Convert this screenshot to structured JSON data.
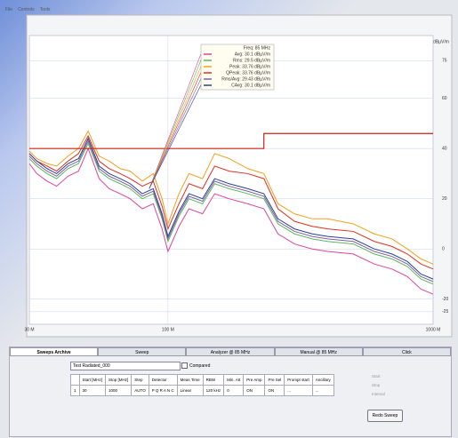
{
  "menu": [
    "File",
    "Controls",
    "Tools"
  ],
  "chart_data": {
    "type": "line",
    "y_axis_label": "dBµV/m",
    "cursor_label": "Freq: 85 MHz",
    "log_x": true,
    "grid": true,
    "xlim": [
      30,
      1000
    ],
    "xticks": [
      {
        "value": 30,
        "label": "30 M"
      },
      {
        "value": 100,
        "label": "100 M"
      },
      {
        "value": 1000,
        "label": "1000 M"
      }
    ],
    "ylim": [
      -30,
      85
    ],
    "yticks": [
      75,
      60,
      40,
      20,
      0,
      -20,
      -25
    ],
    "x": [
      30,
      32,
      35,
      38,
      42,
      46,
      50,
      55,
      60,
      66,
      72,
      80,
      88,
      95,
      100,
      110,
      120,
      135,
      150,
      170,
      200,
      230,
      260,
      300,
      350,
      400,
      500,
      600,
      700,
      800,
      900,
      1000
    ],
    "series": [
      {
        "name": "Avg: 30.1 dBµV/m",
        "color": "#e0449a",
        "values": [
          34,
          30,
          27,
          25,
          29,
          31,
          40,
          28,
          24,
          22,
          20,
          16,
          18,
          8,
          -1,
          9,
          16,
          14,
          22,
          20,
          18,
          16,
          6,
          2,
          0,
          -1,
          -2,
          -6,
          -8,
          -11,
          -16,
          -18
        ]
      },
      {
        "name": "Rms: 29.5 dBµV/m",
        "color": "#5cb85c",
        "values": [
          36,
          33,
          30,
          28,
          32,
          34,
          42,
          31,
          28,
          26,
          24,
          20,
          22,
          12,
          3,
          13,
          20,
          18,
          26,
          24,
          22,
          20,
          10,
          6,
          4,
          3,
          2,
          -2,
          -4,
          -7,
          -12,
          -14
        ]
      },
      {
        "name": "Peak: 33.76 dBµV/m",
        "color": "#f0a020",
        "values": [
          39,
          36,
          34,
          33,
          37,
          40,
          47,
          37,
          35,
          32,
          31,
          27,
          30,
          20,
          10,
          22,
          30,
          28,
          38,
          36,
          32,
          30,
          18,
          14,
          12,
          12,
          10,
          6,
          4,
          0,
          -4,
          -6
        ]
      },
      {
        "name": "QPeak: 33.76 dBµV/m",
        "color": "#e03020",
        "values": [
          38,
          35,
          33,
          31,
          35,
          38,
          45,
          35,
          32,
          30,
          28,
          25,
          27,
          17,
          8,
          18,
          26,
          24,
          33,
          31,
          30,
          28,
          16,
          11,
          9,
          8,
          7,
          3,
          1,
          -2,
          -6,
          -8
        ]
      },
      {
        "name": "Rms/Avg: 29.43 dBµV/m",
        "color": "#8060a0",
        "values": [
          37,
          34,
          31,
          29,
          33,
          35,
          43,
          32,
          29,
          27,
          25,
          21,
          23,
          13,
          4,
          14,
          21,
          19,
          27,
          25,
          23,
          21,
          11,
          7,
          5,
          4,
          3,
          -1,
          -3,
          -6,
          -11,
          -13
        ]
      },
      {
        "name": "CAvg: 30.1 dBµV/m",
        "color": "#2a3f9a",
        "values": [
          38,
          35,
          32,
          30,
          34,
          36,
          44,
          33,
          30,
          28,
          26,
          22,
          24,
          14,
          5,
          15,
          22,
          20,
          28,
          26,
          24,
          22,
          12,
          8,
          6,
          5,
          4,
          0,
          -2,
          -5,
          -10,
          -12
        ]
      }
    ],
    "limit_line": {
      "color": "#d02010",
      "x": [
        30,
        230,
        230,
        1000
      ],
      "values": [
        40,
        40,
        46,
        46
      ]
    }
  },
  "tabs": [
    "Sweeps Archive",
    "Sweep",
    "Analyzer @ 85 MHz",
    "Manual @ 85 MHz",
    "Click"
  ],
  "archive": {
    "dropdown": "Test Radiated_000",
    "checkbox": "Compared",
    "table": {
      "headers": [
        "",
        "Start [MHz]",
        "Stop [MHz]",
        "Step",
        "Detector",
        "Meas Time",
        "RBW",
        "Min. Att",
        "Pre Amp",
        "Pre Sel",
        "Prompt start",
        "Ancillary"
      ],
      "rows": [
        [
          "1",
          "30",
          "1000",
          "AUTO",
          "P Q R A N C",
          "Linear",
          "120 kHz",
          "0",
          "ON",
          "ON",
          "...",
          "..."
        ]
      ]
    },
    "side": [
      "Start",
      "Stop",
      "Interval"
    ],
    "button": "Redo Sweep"
  }
}
